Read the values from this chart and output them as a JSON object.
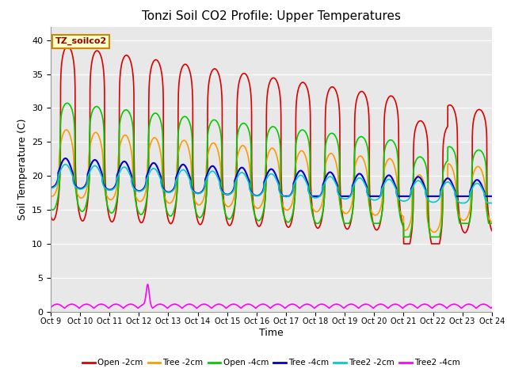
{
  "title": "Tonzi Soil CO2 Profile: Upper Temperatures",
  "xlabel": "Time",
  "ylabel": "Soil Temperature (C)",
  "annotation": "TZ_soilco2",
  "ylim": [
    0,
    42
  ],
  "yticks": [
    0,
    5,
    10,
    15,
    20,
    25,
    30,
    35,
    40
  ],
  "xtick_labels": [
    "Oct 9",
    "Oct 10",
    "Oct 11",
    "Oct 12",
    "Oct 13",
    "Oct 14",
    "Oct 15",
    "Oct 16",
    "Oct 17",
    "Oct 18",
    "Oct 19",
    "Oct 20",
    "Oct 21",
    "Oct 22",
    "Oct 23",
    "Oct 24"
  ],
  "n_days": 15,
  "bg_color": "#e8e8e8",
  "fig_bg": "#ffffff",
  "series": [
    {
      "label": "Open -2cm",
      "color": "#dd0000",
      "lw": 1.2
    },
    {
      "label": "Tree -2cm",
      "color": "#ff9900",
      "lw": 1.2
    },
    {
      "label": "Open -4cm",
      "color": "#00cc00",
      "lw": 1.2
    },
    {
      "label": "Tree -4cm",
      "color": "#0000cc",
      "lw": 1.5
    },
    {
      "label": "Tree2 -2cm",
      "color": "#00cccc",
      "lw": 1.2
    },
    {
      "label": "Tree2 -4cm",
      "color": "#ff00ff",
      "lw": 1.2
    }
  ]
}
